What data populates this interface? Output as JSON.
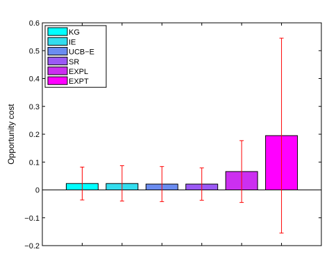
{
  "chart_data": {
    "type": "bar",
    "title": "",
    "xlabel": "",
    "ylabel": "Opportunity cost",
    "ylim": [
      -0.2,
      0.6
    ],
    "yticks": [
      -0.2,
      -0.1,
      0,
      0.1,
      0.2,
      0.3,
      0.4,
      0.5,
      0.6
    ],
    "ytick_labels": [
      "−0.2",
      "−0.1",
      "0",
      "0.1",
      "0.2",
      "0.3",
      "0.4",
      "0.5",
      "0.6"
    ],
    "categories": [
      "KG",
      "IE",
      "UCB−E",
      "SR",
      "EXPL",
      "EXPT"
    ],
    "values": [
      0.023,
      0.023,
      0.021,
      0.021,
      0.066,
      0.195
    ],
    "error_low": [
      -0.036,
      -0.04,
      -0.042,
      -0.037,
      -0.045,
      -0.155
    ],
    "error_high": [
      0.082,
      0.087,
      0.084,
      0.079,
      0.177,
      0.545
    ],
    "colors": [
      "#00ffff",
      "#33ddee",
      "#6b8cf0",
      "#9b59f5",
      "#cc2ff0",
      "#ff00ff"
    ],
    "error_color": "#ff0000",
    "legend": {
      "position": "top-left",
      "entries": [
        "KG",
        "IE",
        "UCB−E",
        "SR",
        "EXPL",
        "EXPT"
      ]
    },
    "grid": false
  }
}
